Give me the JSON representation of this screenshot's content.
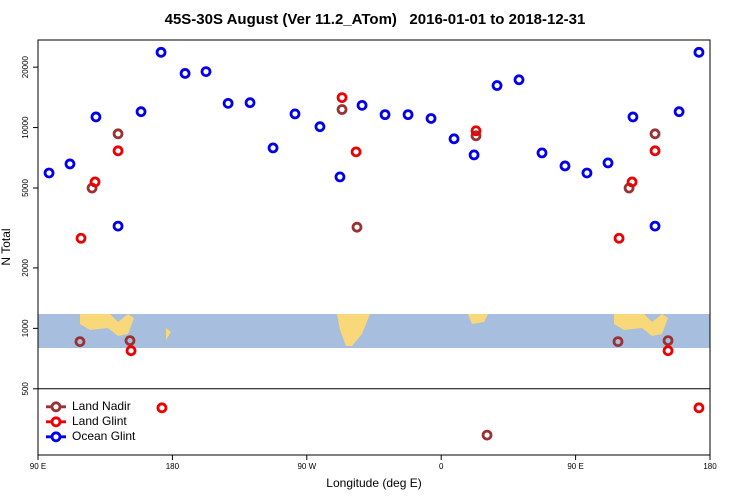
{
  "chart_data": {
    "type": "scatter",
    "title": "45S-30S August (Ver 11.2_ATom)   2016-01-01 to 2018-12-31",
    "x_label": "Longitude (deg E)",
    "y_label": "N Total",
    "xlim": [
      90,
      540
    ],
    "ylim": [
      234,
      27300
    ],
    "log_y": true,
    "legend": "lower-left",
    "xticks": [
      {
        "value": 90,
        "label": "90 E"
      },
      180,
      {
        "value": 270,
        "label": "90 W"
      },
      {
        "value": 360,
        "label": "0"
      },
      {
        "value": 450,
        "label": "90 E"
      },
      {
        "value": 540,
        "label": "180"
      }
    ],
    "yticks": [
      500,
      1000,
      2000,
      5000,
      10000,
      20000
    ],
    "series": [
      {
        "name": "Land Nadir",
        "color": "#993333",
        "x": [
          118.1,
          126.2,
          143.6,
          151.6,
          293.6,
          303.6,
          383.3,
          390.7,
          478.4,
          485.8,
          503.2,
          511.9
        ],
        "values": [
          859,
          5000,
          9310,
          869,
          12300,
          3190,
          9100,
          294,
          859,
          5000,
          9310,
          869
        ]
      },
      {
        "name": "Land Glint",
        "color": "#ee0000",
        "x": [
          118.8,
          128.2,
          143.6,
          152.3,
          173,
          293.6,
          303,
          383.3,
          479.1,
          487.8,
          503.2,
          511.9,
          532.6
        ],
        "values": [
          2810,
          5360,
          7660,
          774,
          402,
          14100,
          7570,
          9640,
          2810,
          5360,
          7660,
          774,
          402
        ]
      },
      {
        "name": "Ocean Glint",
        "color": "#0000ee",
        "x": [
          97.4,
          111.4,
          128.8,
          143.6,
          159,
          172.4,
          188.5,
          202.5,
          217.3,
          232,
          247.4,
          262.1,
          278.8,
          292.2,
          307,
          322.4,
          337.8,
          353.2,
          368.6,
          382,
          397.4,
          412.1,
          427.5,
          442.9,
          457.6,
          471.7,
          488.4,
          503.2,
          519.3,
          532.6
        ],
        "values": [
          5940,
          6590,
          11300,
          3230,
          12000,
          23700,
          18600,
          19000,
          13200,
          13300,
          7920,
          11700,
          10100,
          5680,
          12900,
          11600,
          11600,
          11100,
          8790,
          7310,
          16200,
          17300,
          7480,
          6440,
          5940,
          6670,
          11300,
          3230,
          12000,
          23700
        ]
      }
    ]
  }
}
